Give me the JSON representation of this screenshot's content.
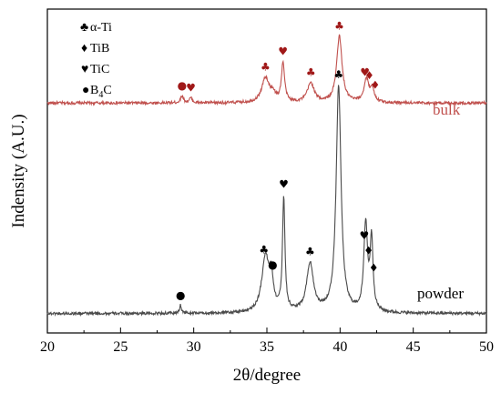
{
  "chart_data": {
    "type": "line",
    "xlabel": "2θ/degree",
    "ylabel": "Indensity (A.U.)",
    "xlim": [
      20,
      50
    ],
    "ylim": [
      0,
      100
    ],
    "x_ticks": [
      "20",
      "25",
      "30",
      "35",
      "40",
      "45",
      "50"
    ],
    "y_ticks_shown": false,
    "grid": false,
    "legend": {
      "placement": "top-left",
      "entries": [
        {
          "symbol": "♣",
          "symbol_name": "club-icon",
          "label": "α-Ti"
        },
        {
          "symbol": "♦",
          "symbol_name": "diamond-icon",
          "label": "TiB"
        },
        {
          "symbol": "♥",
          "symbol_name": "heart-icon",
          "label": "TiC"
        },
        {
          "symbol": "●",
          "symbol_name": "dot-icon",
          "label": "B",
          "label_sub": "4",
          "label_after": "C"
        }
      ]
    },
    "series": [
      {
        "name": "bulk",
        "color": "#c0504d",
        "baseline": 71,
        "peaks": [
          {
            "x": 29.2,
            "h": 2.2,
            "w": 0.12
          },
          {
            "x": 29.8,
            "h": 1.5,
            "w": 0.12
          },
          {
            "x": 34.9,
            "h": 7.5,
            "w": 0.3
          },
          {
            "x": 35.4,
            "h": 2.5,
            "w": 0.2
          },
          {
            "x": 36.1,
            "h": 12.0,
            "w": 0.13
          },
          {
            "x": 38.0,
            "h": 6.0,
            "w": 0.28
          },
          {
            "x": 39.95,
            "h": 20.5,
            "w": 0.22
          },
          {
            "x": 41.8,
            "h": 7.0,
            "w": 0.2
          },
          {
            "x": 42.2,
            "h": 4.0,
            "w": 0.16
          }
        ],
        "markers": [
          {
            "x": 29.2,
            "symbol": "●"
          },
          {
            "x": 29.8,
            "symbol": "♥"
          },
          {
            "x": 34.9,
            "symbol": "♣"
          },
          {
            "x": 36.1,
            "symbol": "♥"
          },
          {
            "x": 38.0,
            "symbol": "♣"
          },
          {
            "x": 39.95,
            "symbol": "♣"
          },
          {
            "x": 41.7,
            "symbol": "♥"
          },
          {
            "x": 42.0,
            "symbol": "♦"
          },
          {
            "x": 42.4,
            "symbol": "♦"
          }
        ]
      },
      {
        "name": "powder",
        "color": "#4a4a4a",
        "baseline": 6,
        "peaks": [
          {
            "x": 29.1,
            "h": 2.5,
            "w": 0.08
          },
          {
            "x": 34.9,
            "h": 17.0,
            "w": 0.3
          },
          {
            "x": 35.3,
            "h": 9.0,
            "w": 0.16
          },
          {
            "x": 36.15,
            "h": 35.0,
            "w": 0.1
          },
          {
            "x": 37.95,
            "h": 15.0,
            "w": 0.28
          },
          {
            "x": 39.9,
            "h": 70.0,
            "w": 0.2
          },
          {
            "x": 41.75,
            "h": 27.0,
            "w": 0.15
          },
          {
            "x": 42.15,
            "h": 22.0,
            "w": 0.12
          }
        ],
        "markers": [
          {
            "x": 29.1,
            "symbol": "●"
          },
          {
            "x": 34.8,
            "symbol": "♣"
          },
          {
            "x": 35.4,
            "symbol": "●"
          },
          {
            "x": 36.15,
            "symbol": "♥"
          },
          {
            "x": 37.95,
            "symbol": "♣"
          },
          {
            "x": 39.9,
            "symbol": "♣"
          },
          {
            "x": 41.65,
            "symbol": "♥"
          },
          {
            "x": 41.95,
            "symbol": "♦"
          },
          {
            "x": 42.3,
            "symbol": "♦"
          }
        ]
      }
    ]
  }
}
